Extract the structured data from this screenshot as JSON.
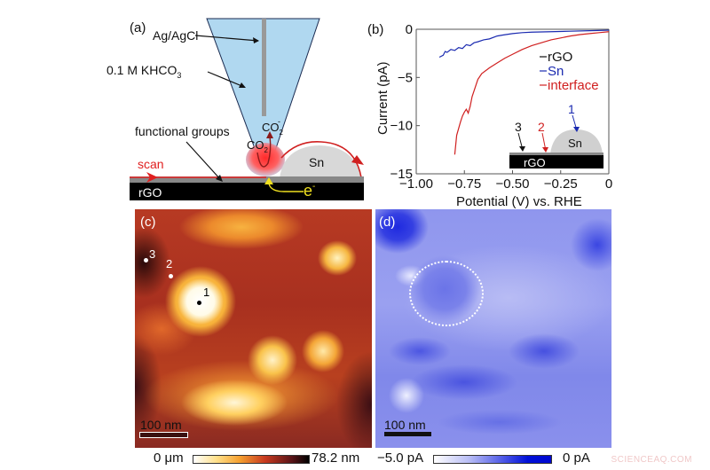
{
  "figure": {
    "panel_a": {
      "label": "(a)",
      "annotations": {
        "electrode": "Ag/AgCl",
        "electrolyte": "0.1 M KHCO",
        "electrolyte_sub": "3",
        "functional_groups": "functional groups",
        "scan": "scan",
        "substrate": "rGO",
        "particle": "Sn",
        "reactant": "CO",
        "reactant_sub": "2",
        "product": "CO",
        "product_sub": "2",
        "product_sup": "-",
        "electron": "e",
        "electron_sup": "-"
      },
      "colors": {
        "pipette_fill": "#b0d8f0",
        "pipette_edge": "#1a2a50",
        "electrode_wire": "#999999",
        "sn_fill": "#d8d8d8",
        "scan_arrow": "#e02020",
        "electron_arrow": "#f0e020",
        "substrate": "#000000",
        "functional_layer": "#888888"
      }
    },
    "panel_b": {
      "label": "(b)",
      "inset": {
        "labels": [
          "1",
          "2",
          "3"
        ],
        "label_colors": [
          "#1a2ab0",
          "#d02020",
          "#111111"
        ],
        "particle": "Sn",
        "substrate": "rGO"
      }
    },
    "panel_c": {
      "label": "(c)",
      "points": [
        {
          "label": "1",
          "color": "#000000"
        },
        {
          "label": "2",
          "color": "#ffffff"
        },
        {
          "label": "3",
          "color": "#ffffff"
        }
      ],
      "scale_bar": "100 nm",
      "colorbar": {
        "min_label": "0 μm",
        "max_label": "78.2 nm"
      }
    },
    "panel_d": {
      "label": "(d)",
      "scale_bar": "100 nm",
      "colorbar": {
        "min_label": "−5.0 pA",
        "max_label": "0 pA"
      }
    },
    "watermark": "SCIENCEAQ.COM"
  },
  "chart_data": {
    "type": "line",
    "title": "",
    "xlabel": "Potential (V) vs. RHE",
    "ylabel": "Current (pA)",
    "xlim": [
      -1.0,
      0.0
    ],
    "ylim": [
      -15,
      0
    ],
    "xticks": [
      "−1.00",
      "−0.75",
      "−0.50",
      "−0.25",
      "0"
    ],
    "yticks": [
      "0",
      "−5",
      "−10",
      "−15"
    ],
    "grid": false,
    "legend": {
      "position": "upper right inside",
      "entries": [
        "rGO",
        "Sn",
        "interface"
      ]
    },
    "series": [
      {
        "name": "rGO",
        "color": "#111111",
        "x": [],
        "y": []
      },
      {
        "name": "Sn",
        "color": "#1a2ab0",
        "x": [
          -0.88,
          -0.86,
          -0.85,
          -0.84,
          -0.82,
          -0.8,
          -0.78,
          -0.76,
          -0.74,
          -0.72,
          -0.7,
          -0.68,
          -0.65,
          -0.62,
          -0.58,
          -0.55,
          -0.5,
          -0.45,
          -0.4,
          -0.3,
          -0.2,
          -0.1,
          0.0
        ],
        "y": [
          -2.9,
          -2.7,
          -2.3,
          -2.4,
          -2.1,
          -2.2,
          -1.9,
          -2.0,
          -1.6,
          -1.7,
          -1.4,
          -1.3,
          -1.1,
          -1.0,
          -0.7,
          -0.6,
          -0.45,
          -0.35,
          -0.3,
          -0.25,
          -0.2,
          -0.15,
          -0.1
        ]
      },
      {
        "name": "interface",
        "color": "#d02020",
        "x": [
          -0.8,
          -0.795,
          -0.79,
          -0.78,
          -0.77,
          -0.76,
          -0.75,
          -0.74,
          -0.73,
          -0.72,
          -0.71,
          -0.7,
          -0.68,
          -0.66,
          -0.62,
          -0.58,
          -0.54,
          -0.5,
          -0.45,
          -0.4,
          -0.35,
          -0.3,
          -0.25,
          -0.2,
          -0.15,
          -0.1,
          -0.05,
          0.0
        ],
        "y": [
          -13.0,
          -12.0,
          -11.0,
          -10.3,
          -9.6,
          -9.0,
          -8.6,
          -8.3,
          -8.7,
          -8.0,
          -7.0,
          -6.4,
          -5.2,
          -4.6,
          -4.0,
          -3.5,
          -3.0,
          -2.6,
          -2.1,
          -1.7,
          -1.4,
          -1.1,
          -0.9,
          -0.7,
          -0.55,
          -0.45,
          -0.35,
          -0.25
        ]
      }
    ]
  }
}
